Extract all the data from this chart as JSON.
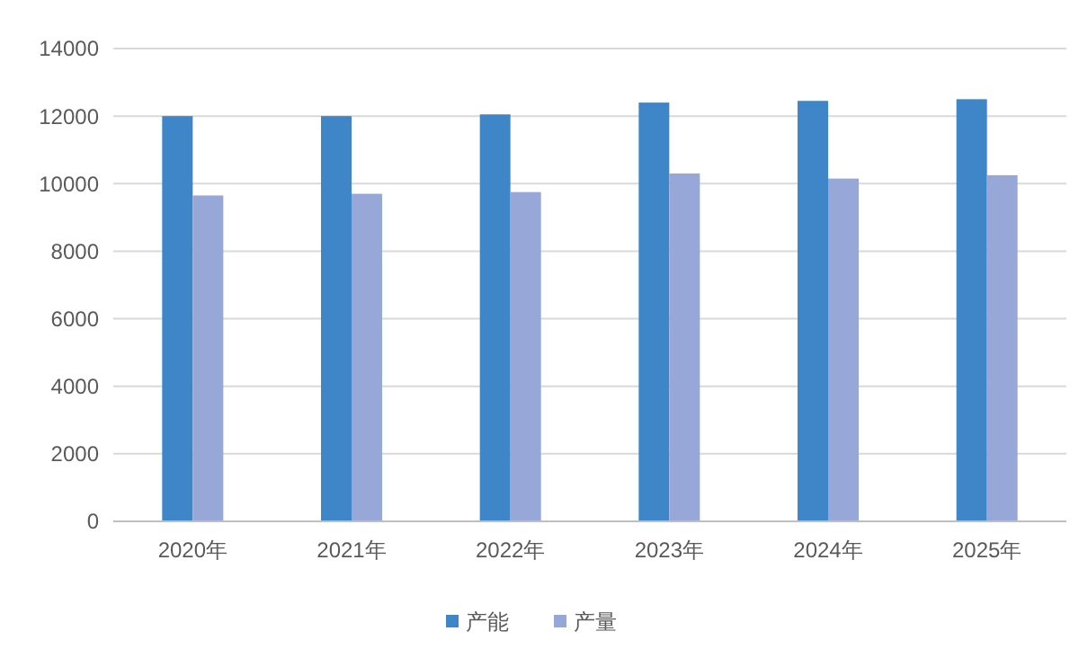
{
  "chart_data": {
    "type": "bar",
    "categories": [
      "2020年",
      "2021年",
      "2022年",
      "2023年",
      "2024年",
      "2025年"
    ],
    "series": [
      {
        "name": "产能",
        "color": "#3f86c8",
        "values": [
          12000,
          12000,
          12050,
          12400,
          12450,
          12500
        ]
      },
      {
        "name": "产量",
        "color": "#97a8d8",
        "values": [
          9650,
          9700,
          9750,
          10300,
          10150,
          10250
        ]
      }
    ],
    "ylim": [
      0,
      14000
    ],
    "yticks": [
      0,
      2000,
      4000,
      6000,
      8000,
      10000,
      12000,
      14000
    ],
    "grid": "y",
    "legend": "bottom"
  }
}
